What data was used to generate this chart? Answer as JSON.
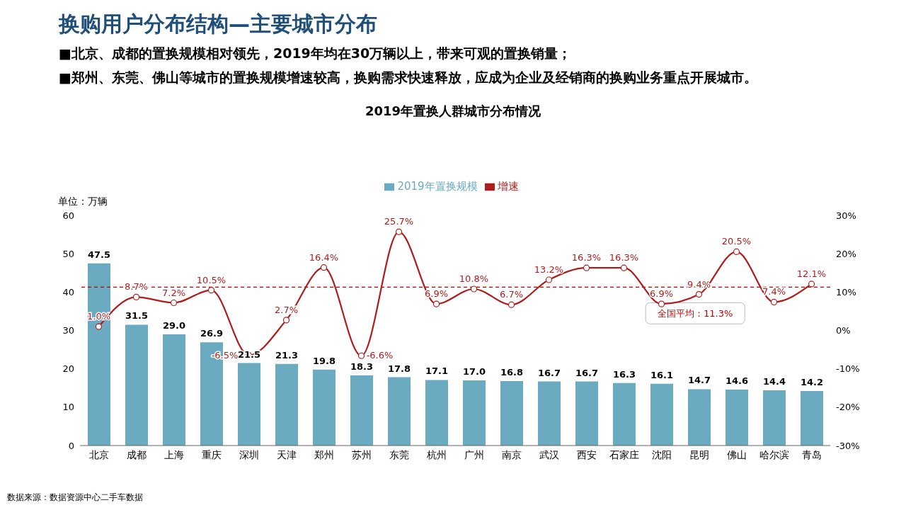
{
  "chart_data": {
    "type": "bar",
    "title": "换购用户分布结构—主要城市分布",
    "subtitle": "2019年置换人群城市分布情况",
    "ylabel": "单位：万辆",
    "annotations": [
      "■北京、成都的置换规模相对领先，2019年均在30万辆以上，带来可观的置换销量；",
      "■郑州、东莞、佛山等城市的置换规模增速较高，换购需求快速释放，应成为企业及经销商的换购业务重点开展城市。",
      "数据来源：数据资源中心二手车数据"
    ],
    "categories": [
      "北京",
      "成都",
      "上海",
      "重庆",
      "深圳",
      "天津",
      "郑州",
      "苏州",
      "东莞",
      "杭州",
      "广州",
      "南京",
      "武汉",
      "西安",
      "石家庄",
      "沈阳",
      "昆明",
      "佛山",
      "哈尔滨",
      "青岛"
    ],
    "series": [
      {
        "name": "2019年置换规模",
        "color": "#6aabc1",
        "values": [
          47.5,
          31.5,
          29.0,
          26.9,
          21.5,
          21.3,
          19.8,
          18.3,
          17.8,
          17.1,
          17.0,
          16.8,
          16.7,
          16.7,
          16.3,
          16.1,
          14.7,
          14.6,
          14.4,
          14.2
        ],
        "value_labels": [
          "47.5",
          "31.5",
          "29.0",
          "26.9",
          "21.5",
          "21.3",
          "19.8",
          "18.3",
          "17.8",
          "17.1",
          "17.0",
          "16.8",
          "16.7",
          "16.7",
          "16.3",
          "16.1",
          "14.7",
          "14.6",
          "14.4",
          "14.2"
        ]
      },
      {
        "name": "增速",
        "type": "line",
        "axis": "y2",
        "color": "#b01c1c",
        "values": [
          1.0,
          8.7,
          7.2,
          10.5,
          -6.5,
          2.7,
          16.4,
          -6.6,
          25.7,
          6.9,
          10.8,
          6.7,
          13.2,
          16.3,
          16.3,
          6.9,
          9.4,
          20.5,
          7.4,
          12.1
        ],
        "value_labels": [
          "1.0%",
          "8.7%",
          "7.2%",
          "10.5%",
          "-6.5%",
          "2.7%",
          "16.4%",
          "-6.6%",
          "25.7%",
          "6.9%",
          "10.8%",
          "6.7%",
          "13.2%",
          "16.3%",
          "16.3%",
          "6.9%",
          "9.4%",
          "20.5%",
          "7.4%",
          "12.1%"
        ]
      }
    ],
    "ylim": [
      0,
      60
    ],
    "yticks": [
      0,
      10,
      20,
      30,
      40,
      50,
      60
    ],
    "y2lim": [
      -30,
      30
    ],
    "y2ticks": [
      {
        "value": -30,
        "label": "-30%"
      },
      {
        "value": -20,
        "label": "-20%"
      },
      {
        "value": -10,
        "label": "-10%"
      },
      {
        "value": 0,
        "label": "0%"
      },
      {
        "value": 10,
        "label": "10%"
      },
      {
        "value": 20,
        "label": "20%"
      },
      {
        "value": 30,
        "label": "30%"
      }
    ],
    "ref_lines": [
      {
        "axis": "y2",
        "value": 11.3,
        "label": "全国平均：11.3%",
        "color": "#c00000",
        "line_style": "dashed"
      }
    ],
    "legend": "top",
    "grid": false,
    "marker": "circle",
    "line_style": "solid"
  }
}
